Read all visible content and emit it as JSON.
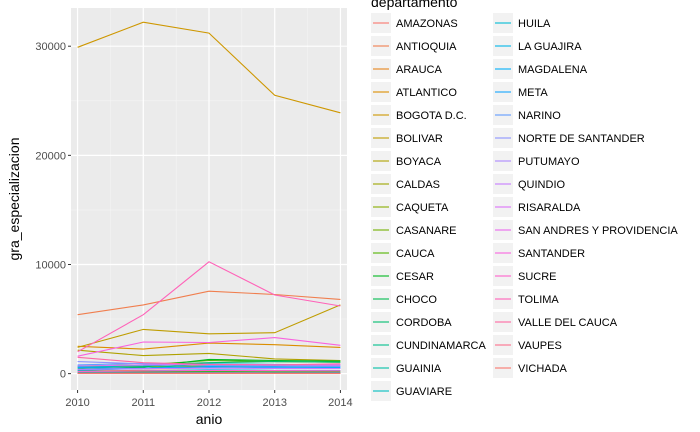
{
  "chart_data": {
    "type": "line",
    "xlabel": "anio",
    "ylabel": "gra_especializacion",
    "x": [
      2010,
      2011,
      2012,
      2013,
      2014
    ],
    "xlim": [
      2009.9,
      2014.1
    ],
    "ylim": [
      -1500,
      33500
    ],
    "y_ticks": [
      0,
      10000,
      20000,
      30000
    ],
    "legend_title": "departamento",
    "legend_position": "right",
    "background": "#EBEBEB",
    "grid": true,
    "series": [
      {
        "name": "AMAZONAS",
        "color": "#F8766D",
        "values": [
          30,
          40,
          35,
          30,
          25
        ]
      },
      {
        "name": "ANTIOQUIA",
        "color": "#F07E4E",
        "values": [
          5400,
          6300,
          7550,
          7250,
          6800
        ]
      },
      {
        "name": "ARAUCA",
        "color": "#E7861B",
        "values": [
          250,
          300,
          320,
          280,
          260
        ]
      },
      {
        "name": "ATLANTICO",
        "color": "#DB8E00",
        "values": [
          2500,
          2250,
          2800,
          2650,
          2400
        ]
      },
      {
        "name": "BOGOTA D.C.",
        "color": "#CE9700",
        "values": [
          29900,
          32200,
          31200,
          25500,
          23900
        ]
      },
      {
        "name": "BOLIVAR",
        "color": "#BF9D00",
        "values": [
          2400,
          4050,
          3650,
          3750,
          6300
        ]
      },
      {
        "name": "BOYACA",
        "color": "#AFA100",
        "values": [
          2150,
          1650,
          1850,
          1350,
          1200
        ]
      },
      {
        "name": "CALDAS",
        "color": "#9DA700",
        "values": [
          600,
          650,
          700,
          750,
          800
        ]
      },
      {
        "name": "CAQUETA",
        "color": "#89AC00",
        "values": [
          80,
          90,
          100,
          110,
          90
        ]
      },
      {
        "name": "CASANARE",
        "color": "#72B000",
        "values": [
          150,
          180,
          200,
          170,
          160
        ]
      },
      {
        "name": "CAUCA",
        "color": "#53B400",
        "values": [
          700,
          800,
          1200,
          1100,
          1050
        ]
      },
      {
        "name": "CESAR",
        "color": "#00B81F",
        "values": [
          400,
          600,
          1300,
          1200,
          1150
        ]
      },
      {
        "name": "CHOCO",
        "color": "#00BB4E",
        "values": [
          100,
          120,
          140,
          130,
          110
        ]
      },
      {
        "name": "CORDOBA",
        "color": "#00BD70",
        "values": [
          500,
          800,
          1000,
          1100,
          1050
        ]
      },
      {
        "name": "CUNDINAMARCA",
        "color": "#00BE8D",
        "values": [
          300,
          500,
          900,
          700,
          650
        ]
      },
      {
        "name": "GUAINIA",
        "color": "#00BFA7",
        "values": [
          20,
          25,
          30,
          25,
          20
        ]
      },
      {
        "name": "GUAVIARE",
        "color": "#00BDBF",
        "values": [
          30,
          35,
          40,
          35,
          30
        ]
      },
      {
        "name": "HUILA",
        "color": "#00BBD4",
        "values": [
          650,
          700,
          900,
          850,
          800
        ]
      },
      {
        "name": "LA GUAJIRA",
        "color": "#00B6E9",
        "values": [
          200,
          250,
          350,
          300,
          280
        ]
      },
      {
        "name": "MAGDALENA",
        "color": "#00AFF9",
        "values": [
          550,
          500,
          650,
          600,
          550
        ]
      },
      {
        "name": "META",
        "color": "#14A6FF",
        "values": [
          350,
          450,
          550,
          500,
          480
        ]
      },
      {
        "name": "NARINO",
        "color": "#619CFF",
        "values": [
          800,
          950,
          750,
          700,
          650
        ]
      },
      {
        "name": "NORTE DE SANTANDER",
        "color": "#8C94FF",
        "values": [
          1100,
          900,
          800,
          750,
          700
        ]
      },
      {
        "name": "PUTUMAYO",
        "color": "#AC88FF",
        "values": [
          50,
          60,
          70,
          60,
          55
        ]
      },
      {
        "name": "QUINDIO",
        "color": "#C77CFF",
        "values": [
          400,
          450,
          500,
          480,
          460
        ]
      },
      {
        "name": "RISARALDA",
        "color": "#DC71FA",
        "values": [
          700,
          800,
          850,
          820,
          780
        ]
      },
      {
        "name": "SAN ANDRES Y PROVIDENCIA",
        "color": "#EC68EE",
        "values": [
          40,
          45,
          50,
          45,
          40
        ]
      },
      {
        "name": "SANTANDER",
        "color": "#F863DF",
        "values": [
          1600,
          2900,
          2850,
          3300,
          2600
        ]
      },
      {
        "name": "SUCRE",
        "color": "#FF61CC",
        "values": [
          200,
          250,
          300,
          280,
          260
        ]
      },
      {
        "name": "TOLIMA",
        "color": "#FF62B8",
        "values": [
          2000,
          5400,
          10250,
          7200,
          6200
        ]
      },
      {
        "name": "VALLE DEL CAUCA",
        "color": "#FF67A3",
        "values": [
          1500,
          1000,
          850,
          800,
          900
        ]
      },
      {
        "name": "VAUPES",
        "color": "#FC6E8C",
        "values": [
          10,
          12,
          15,
          12,
          10
        ]
      },
      {
        "name": "VICHADA",
        "color": "#F8766D",
        "values": [
          15,
          18,
          20,
          18,
          15
        ]
      }
    ]
  }
}
